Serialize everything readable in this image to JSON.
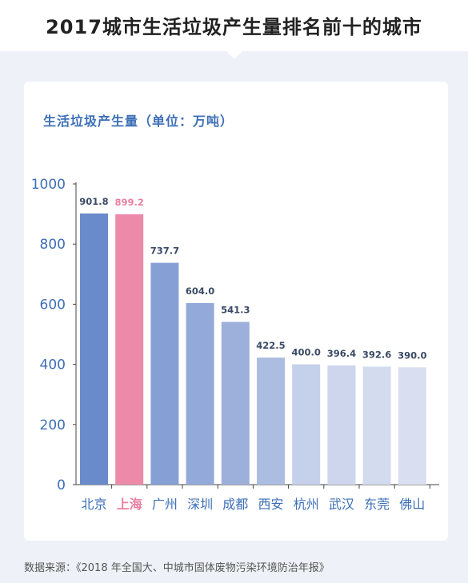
{
  "page": {
    "title": "2017城市生活垃圾产生量排名前十的城市",
    "source": "数据来源：《2018 年全国大、中城市固体废物污染环境防治年报》"
  },
  "colors": {
    "bar_gradient": [
      "#6a8bcb",
      "#7898d3",
      "#869fd4",
      "#92a9d9",
      "#9db0dc",
      "#acbde2",
      "#c5d0ea",
      "#cdd6ed",
      "#d3dbef",
      "#d9dff1"
    ],
    "highlight_bar": "#ee8aa9",
    "highlight_label": "#e8809f",
    "axis_text": "#3d6fb6",
    "category_text": "#3d6fb6"
  },
  "chart_data": {
    "type": "bar",
    "title": "生活垃圾产生量（单位：万吨）",
    "categories": [
      "北京",
      "上海",
      "广州",
      "深圳",
      "成都",
      "西安",
      "杭州",
      "武汉",
      "东莞",
      "佛山"
    ],
    "values": [
      901.8,
      899.2,
      737.7,
      604.0,
      541.3,
      422.5,
      400.0,
      396.4,
      392.6,
      390.0
    ],
    "value_labels": [
      "901.8",
      "899.2",
      "737.7",
      "604.0",
      "541.3",
      "422.5",
      "400.0",
      "396.4",
      "392.6",
      "390.0"
    ],
    "highlight_index": 1,
    "ylim": [
      0,
      1000
    ],
    "yticks": [
      0,
      200,
      400,
      600,
      800,
      1000
    ],
    "grid": false,
    "xlabel": "",
    "ylabel": ""
  }
}
